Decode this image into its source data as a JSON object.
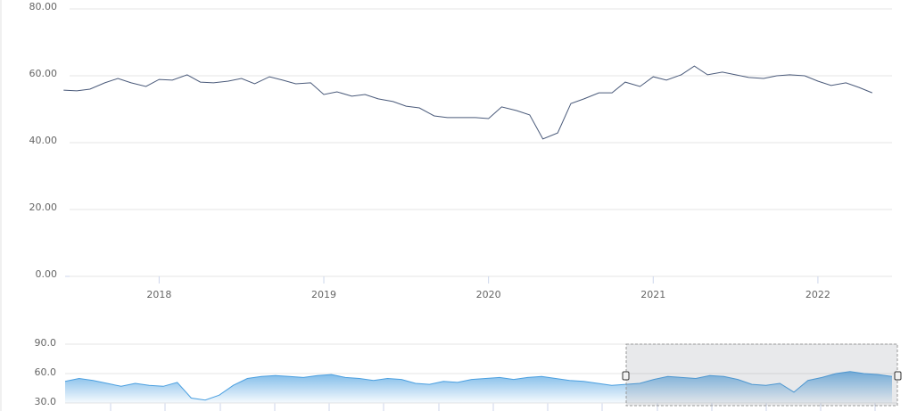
{
  "chart_data": [
    {
      "type": "line",
      "color": "#4a5a7a",
      "grid": true,
      "x": [
        2017.42,
        2017.5,
        2017.58,
        2017.67,
        2017.75,
        2017.83,
        2017.92,
        2018.0,
        2018.08,
        2018.17,
        2018.25,
        2018.33,
        2018.42,
        2018.5,
        2018.58,
        2018.67,
        2018.75,
        2018.83,
        2018.92,
        2019.0,
        2019.08,
        2019.17,
        2019.25,
        2019.33,
        2019.42,
        2019.5,
        2019.58,
        2019.67,
        2019.75,
        2019.83,
        2019.92,
        2020.0,
        2020.08,
        2020.17,
        2020.25,
        2020.33,
        2020.42,
        2020.5,
        2020.58,
        2020.67,
        2020.75,
        2020.83,
        2020.92,
        2021.0,
        2021.08,
        2021.17,
        2021.25,
        2021.33,
        2021.42,
        2021.5,
        2021.58,
        2021.67,
        2021.75,
        2021.83,
        2021.92,
        2022.0,
        2022.08,
        2022.17,
        2022.25,
        2022.33
      ],
      "values": [
        55.7,
        55.5,
        56.0,
        57.9,
        59.2,
        57.9,
        56.8,
        58.9,
        58.7,
        60.3,
        58.1,
        57.9,
        58.4,
        59.2,
        57.6,
        59.7,
        58.7,
        57.6,
        57.9,
        54.4,
        55.2,
        53.9,
        54.4,
        53.1,
        52.3,
        50.9,
        50.4,
        48.0,
        47.5,
        47.5,
        47.5,
        47.2,
        50.7,
        49.6,
        48.3,
        41.1,
        42.9,
        51.7,
        53.1,
        54.9,
        54.9,
        58.1,
        56.8,
        59.7,
        58.7,
        60.3,
        62.9,
        60.3,
        61.1,
        60.3,
        59.5,
        59.2,
        60.0,
        60.3,
        60.0,
        58.4,
        57.1,
        57.9,
        56.5,
        54.9
      ],
      "xlim": [
        2017.44,
        2022.45
      ],
      "xticks": [
        2018,
        2019,
        2020,
        2021,
        2022
      ],
      "ylim": [
        0,
        80
      ],
      "yticks": [
        {
          "value": 0,
          "label": "0.00"
        },
        {
          "value": 20,
          "label": "20.00"
        },
        {
          "value": 40,
          "label": "40.00"
        },
        {
          "value": 60,
          "label": "60.00"
        },
        {
          "value": 80,
          "label": "80.00"
        }
      ]
    },
    {
      "type": "area",
      "color": "#4a9fe0",
      "values": [
        52,
        55,
        53,
        50,
        47,
        50,
        48,
        47,
        51,
        35,
        33,
        38,
        48,
        55,
        57,
        58,
        57,
        56,
        58,
        59,
        56,
        55,
        53,
        55,
        54,
        50,
        49,
        52,
        51,
        54,
        55,
        56,
        54,
        56,
        57,
        55,
        53,
        52,
        50,
        48,
        49,
        50,
        54,
        57,
        56,
        55,
        58,
        57,
        54,
        49,
        48,
        50,
        41,
        53,
        56,
        60,
        62,
        60,
        59,
        57
      ],
      "ylim": [
        30,
        90
      ],
      "yticks": [
        {
          "value": 30,
          "label": "30.0"
        },
        {
          "value": 60,
          "label": "60.0"
        },
        {
          "value": 90,
          "label": "90.0"
        }
      ]
    }
  ]
}
